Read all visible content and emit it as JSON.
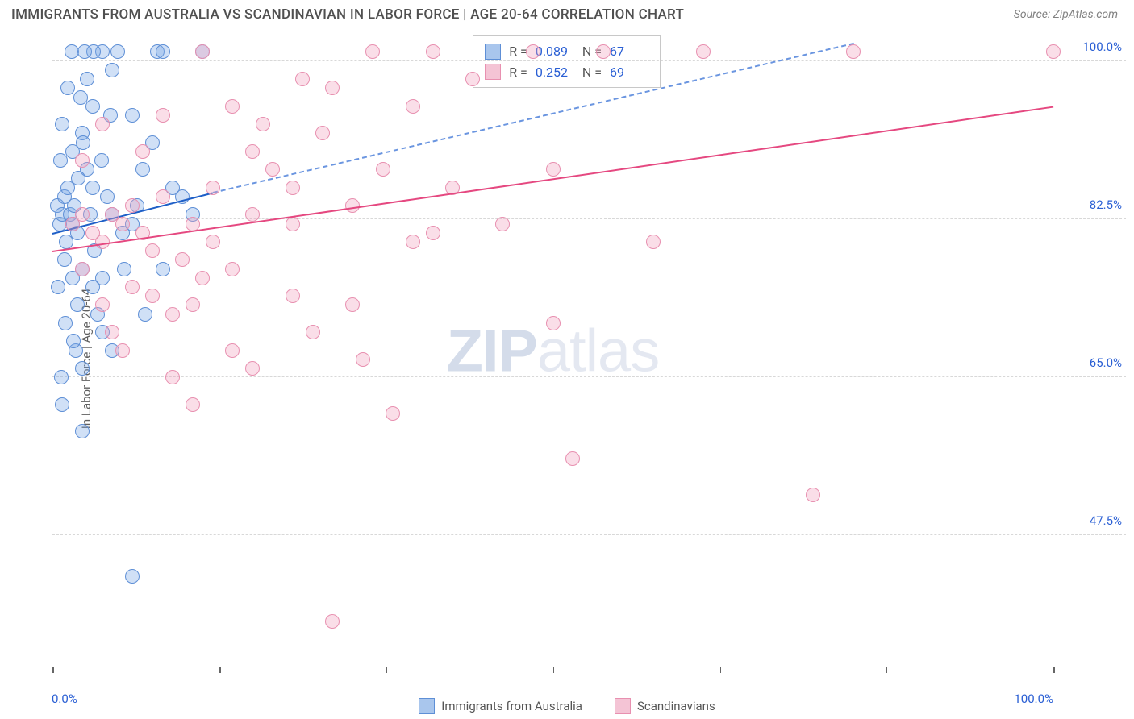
{
  "header": {
    "title": "IMMIGRANTS FROM AUSTRALIA VS SCANDINAVIAN IN LABOR FORCE | AGE 20-64 CORRELATION CHART",
    "source": "Source: ZipAtlas.com"
  },
  "chart": {
    "type": "scatter",
    "ylabel": "In Labor Force | Age 20-64",
    "watermark": "ZIPatlas",
    "xlim": [
      0,
      100
    ],
    "ylim": [
      33,
      103
    ],
    "x_tick_positions": [
      0,
      16.7,
      33.3,
      50,
      66.7,
      83.3,
      100
    ],
    "x_label_min": "0.0%",
    "x_label_max": "100.0%",
    "y_gridlines": [
      47.5,
      65.0,
      82.5,
      100.0
    ],
    "y_tick_labels": [
      "47.5%",
      "65.0%",
      "82.5%",
      "100.0%"
    ],
    "grid_color": "#d8d8d8",
    "axis_color": "#666666",
    "background_color": "#ffffff",
    "tick_label_color": "#2a5fd4",
    "point_radius": 9,
    "point_stroke_width": 1.5,
    "series": [
      {
        "name": "Immigrants from Australia",
        "fill": "rgba(120,165,230,0.35)",
        "stroke": "#5e8fd6",
        "swatch_fill": "#a9c6ed",
        "swatch_stroke": "#5e8fd6",
        "r_value": "0.089",
        "n_value": "67",
        "trend": {
          "x1": 0,
          "y1": 81,
          "x2": 16,
          "y2": 85.5,
          "x2_dash": 80,
          "y2_dash": 102,
          "solid_color": "#1e5fc7",
          "dash_color": "#6a95e0",
          "width": 2.5
        },
        "points": [
          [
            0.5,
            84
          ],
          [
            0.7,
            82
          ],
          [
            1,
            83
          ],
          [
            1.2,
            85
          ],
          [
            1.4,
            80
          ],
          [
            1.5,
            86
          ],
          [
            1.8,
            83
          ],
          [
            2,
            82
          ],
          [
            2.2,
            84
          ],
          [
            2.5,
            81
          ],
          [
            1,
            93
          ],
          [
            2,
            90
          ],
          [
            3,
            92
          ],
          [
            3.5,
            88
          ],
          [
            4,
            95
          ],
          [
            1.2,
            78
          ],
          [
            2,
            76
          ],
          [
            3,
            77
          ],
          [
            2.5,
            73
          ],
          [
            4,
            75
          ],
          [
            5,
            70
          ],
          [
            6,
            68
          ],
          [
            5,
            76
          ],
          [
            4.5,
            72
          ],
          [
            3,
            66
          ],
          [
            7,
            81
          ],
          [
            8,
            82
          ],
          [
            8,
            94
          ],
          [
            9,
            88
          ],
          [
            10,
            91
          ],
          [
            1,
            62
          ],
          [
            3,
            59
          ],
          [
            8,
            43
          ],
          [
            4,
            86
          ],
          [
            6,
            83
          ],
          [
            2.8,
            96
          ],
          [
            3.5,
            98
          ],
          [
            5.5,
            85
          ],
          [
            1.5,
            97
          ],
          [
            0.8,
            89
          ],
          [
            2.3,
            68
          ],
          [
            3.1,
            91
          ],
          [
            4.2,
            79
          ],
          [
            5.8,
            94
          ],
          [
            0.6,
            75
          ],
          [
            1.9,
            101
          ],
          [
            2.6,
            87
          ],
          [
            3.8,
            83
          ],
          [
            4.9,
            89
          ],
          [
            6.5,
            101
          ],
          [
            7.2,
            77
          ],
          [
            8.5,
            84
          ],
          [
            9.3,
            72
          ],
          [
            10.5,
            101
          ],
          [
            11,
            77
          ],
          [
            11,
            101
          ],
          [
            12,
            86
          ],
          [
            13,
            85
          ],
          [
            14,
            83
          ],
          [
            15,
            101
          ],
          [
            5,
            101
          ],
          [
            6,
            99
          ],
          [
            1.3,
            71
          ],
          [
            2.1,
            69
          ],
          [
            0.9,
            65
          ],
          [
            4.1,
            101
          ],
          [
            3.2,
            101
          ]
        ]
      },
      {
        "name": "Scandinavians",
        "fill": "rgba(240,160,190,0.35)",
        "stroke": "#e890b0",
        "swatch_fill": "#f4c4d5",
        "swatch_stroke": "#e890b0",
        "r_value": "0.252",
        "n_value": "69",
        "trend": {
          "x1": 0,
          "y1": 79,
          "x2": 100,
          "y2": 95,
          "solid_color": "#e54880",
          "width": 2.5
        },
        "points": [
          [
            2,
            82
          ],
          [
            3,
            83
          ],
          [
            4,
            81
          ],
          [
            5,
            80
          ],
          [
            6,
            83
          ],
          [
            7,
            82
          ],
          [
            8,
            84
          ],
          [
            9,
            81
          ],
          [
            10,
            79
          ],
          [
            11,
            85
          ],
          [
            13,
            78
          ],
          [
            14,
            82
          ],
          [
            15,
            76
          ],
          [
            8,
            75
          ],
          [
            10,
            74
          ],
          [
            12,
            72
          ],
          [
            14,
            73
          ],
          [
            18,
            77
          ],
          [
            16,
            80
          ],
          [
            20,
            83
          ],
          [
            21,
            93
          ],
          [
            22,
            88
          ],
          [
            24,
            86
          ],
          [
            15,
            101
          ],
          [
            18,
            95
          ],
          [
            25,
            98
          ],
          [
            27,
            92
          ],
          [
            28,
            97
          ],
          [
            30,
            84
          ],
          [
            32,
            101
          ],
          [
            24,
            74
          ],
          [
            26,
            70
          ],
          [
            18,
            68
          ],
          [
            20,
            66
          ],
          [
            31,
            67
          ],
          [
            30,
            73
          ],
          [
            36,
            80
          ],
          [
            38,
            101
          ],
          [
            40,
            86
          ],
          [
            45,
            82
          ],
          [
            48,
            101
          ],
          [
            50,
            88
          ],
          [
            55,
            101
          ],
          [
            52,
            56
          ],
          [
            50,
            71
          ],
          [
            60,
            80
          ],
          [
            65,
            101
          ],
          [
            76,
            52
          ],
          [
            80,
            101
          ],
          [
            100,
            101
          ],
          [
            3,
            77
          ],
          [
            5,
            73
          ],
          [
            6,
            70
          ],
          [
            7,
            68
          ],
          [
            28,
            38
          ],
          [
            34,
            61
          ],
          [
            14,
            62
          ],
          [
            12,
            65
          ],
          [
            16,
            86
          ],
          [
            20,
            90
          ],
          [
            24,
            82
          ],
          [
            33,
            88
          ],
          [
            36,
            95
          ],
          [
            42,
            98
          ],
          [
            11,
            94
          ],
          [
            9,
            90
          ],
          [
            5,
            93
          ],
          [
            3,
            89
          ],
          [
            38,
            81
          ]
        ]
      }
    ],
    "legend": {
      "items": [
        {
          "label": "Immigrants from Australia"
        },
        {
          "label": "Scandinavians"
        }
      ]
    }
  }
}
